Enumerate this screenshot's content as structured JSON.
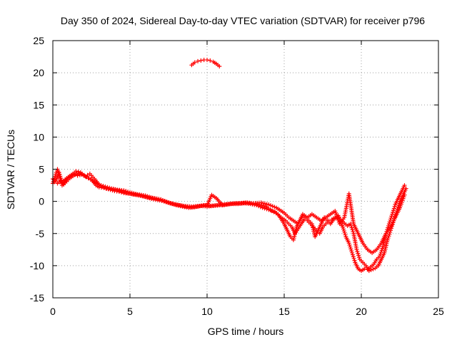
{
  "chart_data": {
    "type": "scatter",
    "title": "Day 350 of 2024, Sidereal Day-to-day VTEC variation (SDTVAR) for receiver p796",
    "xlabel": "GPS time / hours",
    "ylabel": "SDTVAR / TECUs",
    "xlim": [
      0,
      25
    ],
    "ylim": [
      -15,
      25
    ],
    "xticks": [
      "0",
      "5",
      "10",
      "15",
      "20",
      "25"
    ],
    "yticks": [
      "25",
      "20",
      "15",
      "10",
      "5",
      "0",
      "-5",
      "-10",
      "-15"
    ],
    "grid": true,
    "marker": "plus",
    "color": "#ff0000",
    "series": [
      {
        "name": "main",
        "x": [
          0,
          0.2,
          0.4,
          0.6,
          0.8,
          1.0,
          1.3,
          1.6,
          1.9,
          2.2,
          2.5,
          2.8,
          3.0,
          3.3,
          3.6,
          4.0,
          4.3,
          4.6,
          5.0,
          5.4,
          5.8,
          6.2,
          6.6,
          7.0,
          7.4,
          7.8,
          8.2,
          8.6,
          9.0,
          9.4,
          9.8,
          10.2,
          10.6,
          11.0,
          11.4,
          11.8,
          12.2,
          12.6,
          13.0,
          13.4,
          13.8,
          14.2,
          14.6,
          15.0,
          15.2,
          15.4,
          15.6,
          15.8,
          16.0,
          16.2,
          16.4,
          16.6,
          16.8,
          17.0,
          17.2,
          17.4,
          17.6,
          17.8,
          18.0,
          18.2,
          18.4,
          18.6,
          18.8,
          19.0,
          19.2,
          19.4,
          19.6,
          19.8,
          20.0,
          20.2,
          20.4,
          20.6,
          20.8,
          21.0,
          21.2,
          21.4,
          21.6,
          21.8,
          22.0,
          22.2,
          22.4,
          22.6,
          22.8
        ],
        "y": [
          3.5,
          3.2,
          4.5,
          3.0,
          3.4,
          3.8,
          4.3,
          4.0,
          4.2,
          3.8,
          3.4,
          2.5,
          2.2,
          2.1,
          1.9,
          1.6,
          1.5,
          1.3,
          1.2,
          1.0,
          0.8,
          0.6,
          0.5,
          0.3,
          -0.1,
          -0.4,
          -0.6,
          -0.8,
          -0.9,
          -0.8,
          -0.6,
          -0.7,
          -0.6,
          -0.5,
          -0.4,
          -0.3,
          -0.3,
          -0.2,
          -0.3,
          -0.5,
          -0.8,
          -1.5,
          -2.0,
          -3.5,
          -4.5,
          -5.5,
          -6.0,
          -4.0,
          -3.0,
          -2.3,
          -2.5,
          -3.0,
          -3.5,
          -5.5,
          -4.5,
          -3.5,
          -2.5,
          -3.0,
          -3.5,
          -2.8,
          -2.5,
          -3.0,
          -4.0,
          -5.5,
          -6.5,
          -8.0,
          -9.5,
          -10.5,
          -10.8,
          -10.5,
          -10.6,
          -10.2,
          -9.8,
          -9.0,
          -8.5,
          -7.0,
          -5.0,
          -3.5,
          -2.0,
          -0.5,
          0.5,
          1.5,
          2.5
        ]
      },
      {
        "name": "upper",
        "x": [
          0,
          0.3,
          0.6,
          0.9,
          1.2,
          1.5,
          1.8,
          2.1,
          2.4,
          2.7,
          3.0,
          3.4,
          3.8,
          4.2,
          4.6,
          5.0,
          5.5,
          6.0,
          6.5,
          7.0,
          7.5,
          8.0,
          8.5,
          9.0,
          9.5,
          10.0,
          10.3,
          10.6,
          11.0,
          11.5,
          12.0,
          12.5,
          13.0,
          13.5,
          14.0,
          14.5,
          15.0,
          15.3,
          15.6,
          15.9,
          16.2,
          16.5,
          16.8,
          17.1,
          17.4,
          17.7,
          18.0,
          18.3,
          18.6,
          18.9,
          19.2,
          19.5,
          19.8,
          20.1,
          20.4,
          20.7,
          21.0,
          21.3,
          21.6,
          21.9,
          22.2,
          22.5,
          22.8
        ],
        "y": [
          2.8,
          5.0,
          2.5,
          3.5,
          4.0,
          4.7,
          4.5,
          3.9,
          4.3,
          3.5,
          2.6,
          2.3,
          2.0,
          1.8,
          1.7,
          1.4,
          1.1,
          0.9,
          0.5,
          0.3,
          -0.2,
          -0.5,
          -0.7,
          -0.8,
          -0.7,
          -0.6,
          1.0,
          0.5,
          -0.6,
          -0.4,
          -0.3,
          -0.2,
          -0.3,
          -0.2,
          -0.5,
          -1.0,
          -1.8,
          -2.5,
          -3.0,
          -3.5,
          -2.0,
          -2.5,
          -2.0,
          -2.5,
          -3.0,
          -2.5,
          -2.0,
          -1.5,
          -3.5,
          -2.5,
          1.2,
          -3.5,
          -5.0,
          -6.5,
          -7.5,
          -8.0,
          -7.5,
          -6.5,
          -5.0,
          -4.0,
          -2.5,
          -1.0,
          1.0
        ]
      },
      {
        "name": "arc",
        "x": [
          9.0,
          9.2,
          9.4,
          9.6,
          9.8,
          10.0,
          10.2,
          10.4,
          10.6,
          10.8
        ],
        "y": [
          21.2,
          21.6,
          21.8,
          21.9,
          22.0,
          22.0,
          21.9,
          21.7,
          21.4,
          21.0
        ]
      },
      {
        "name": "fill-a",
        "x": [
          0.1,
          0.3,
          0.5,
          0.7,
          0.9,
          1.1,
          1.4,
          1.7,
          2.0,
          2.3,
          2.6,
          2.9,
          3.1,
          3.5,
          3.9,
          4.4,
          4.8,
          5.2,
          5.6,
          6.0,
          6.4,
          6.8,
          7.2,
          7.6,
          8.0,
          8.4,
          8.8,
          9.2,
          9.6,
          10.0,
          10.4,
          10.8,
          11.2,
          11.6,
          12.0,
          12.4,
          12.8,
          13.2,
          13.6,
          14.0,
          14.4,
          14.8,
          15.1,
          15.5,
          15.7,
          16.1,
          16.3,
          16.5,
          16.9,
          17.3,
          17.5,
          17.9,
          18.1,
          18.5,
          18.7,
          19.1,
          19.3,
          19.5,
          19.7,
          19.9,
          20.3,
          20.5,
          20.9,
          21.1,
          21.3,
          21.5,
          21.7,
          21.9,
          22.1,
          22.3,
          22.5,
          22.7,
          22.9
        ],
        "y": [
          3.0,
          2.8,
          3.2,
          2.6,
          3.1,
          3.6,
          4.1,
          4.4,
          4.0,
          3.6,
          3.2,
          2.7,
          2.4,
          2.0,
          1.9,
          1.6,
          1.3,
          1.1,
          1.0,
          0.7,
          0.4,
          0.2,
          0.0,
          -0.3,
          -0.6,
          -0.8,
          -1.0,
          -0.9,
          -0.7,
          -0.8,
          -0.7,
          -0.6,
          -0.5,
          -0.4,
          -0.4,
          -0.3,
          -0.4,
          -0.6,
          -1.0,
          -1.3,
          -1.6,
          -2.5,
          -3.0,
          -4.0,
          -5.0,
          -3.5,
          -2.8,
          -3.0,
          -4.0,
          -5.0,
          -4.0,
          -3.0,
          -2.8,
          -2.2,
          -3.0,
          -3.8,
          -3.5,
          -5.0,
          -7.5,
          -9.0,
          -10.0,
          -10.8,
          -10.4,
          -10.0,
          -9.0,
          -8.0,
          -6.0,
          -4.5,
          -3.0,
          -1.5,
          0,
          1.0,
          2.0
        ]
      }
    ]
  }
}
